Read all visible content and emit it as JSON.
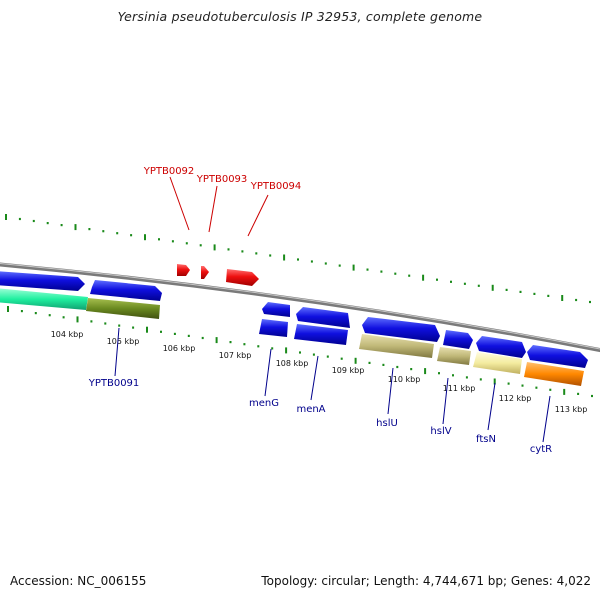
{
  "header": {
    "title": "Yersinia pseudotuberculosis IP 32953, complete genome"
  },
  "footer": {
    "accession": "Accession: NC_006155",
    "summary": "Topology: circular; Length: 4,744,671 bp; Genes: 4,022"
  },
  "scale_labels": [
    "104 kbp",
    "105 kbp",
    "106 kbp",
    "107 kbp",
    "108 kbp",
    "109 kbp",
    "110 kbp",
    "111 kbp",
    "112 kbp",
    "113 kbp"
  ],
  "colors": {
    "blue": "#1010e0",
    "red": "#ee1010",
    "teal": "#20f0a0",
    "olive": "#6a8a20",
    "khaki": "#c8c080",
    "cream": "#f4eca0",
    "orange": "#ff8800",
    "tick_green": "#1a8a1a",
    "backbone": "#888888",
    "label_red": "#cc0000",
    "label_blue": "#00008b"
  },
  "gene_labels": [
    {
      "id": "YPTB0092",
      "color": "red"
    },
    {
      "id": "YPTB0093",
      "color": "red"
    },
    {
      "id": "YPTB0094",
      "color": "red"
    },
    {
      "id": "YPTB0091",
      "color": "blue"
    },
    {
      "id": "menG",
      "color": "blue"
    },
    {
      "id": "menA",
      "color": "blue"
    },
    {
      "id": "hslU",
      "color": "blue"
    },
    {
      "id": "hslV",
      "color": "blue"
    },
    {
      "id": "ftsN",
      "color": "blue"
    },
    {
      "id": "cytR",
      "color": "blue"
    }
  ]
}
